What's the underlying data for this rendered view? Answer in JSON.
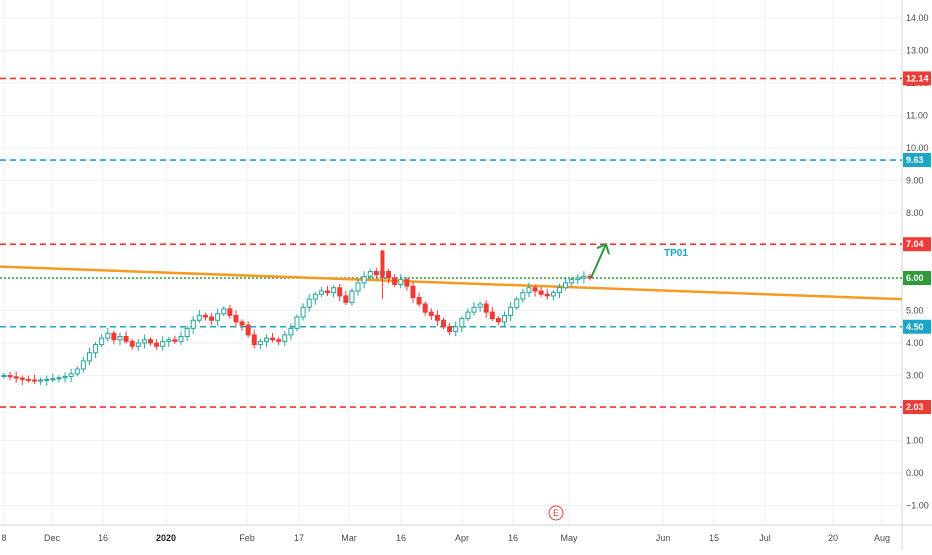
{
  "chart_data": {
    "type": "candlestick",
    "y_axis": {
      "ticks": [
        14,
        13,
        12,
        11,
        10,
        9,
        8,
        7,
        6,
        5,
        4,
        3,
        2,
        1,
        0,
        -1
      ],
      "tick_labels": [
        "14.00",
        "13.00",
        "12.00",
        "11.00",
        "10.00",
        "9.00",
        "8.00",
        "7.00",
        "6.00",
        "5.00",
        "4.00",
        "3.00",
        "2.00",
        "1.00",
        "0.00",
        "−1.00"
      ],
      "range": [
        -1.6,
        14.5
      ],
      "position": "right"
    },
    "x_axis": {
      "tick_labels": [
        "8",
        "Dec",
        "16",
        "2020",
        "Feb",
        "17",
        "Mar",
        "16",
        "Apr",
        "16",
        "May",
        "Jun",
        "15",
        "Jul",
        "20",
        "Aug"
      ],
      "bold_labels": [
        "2020"
      ]
    },
    "colors": {
      "up": "#26a69a",
      "down": "#ef3b36",
      "red_level": "#ef3b36",
      "cyan_level": "#1ba6c8",
      "green_level": "#2e9a3c",
      "trendline": "#f59a23",
      "arrow": "#2e9a3c",
      "grid": "#eef0f3"
    },
    "grid": true,
    "levels": [
      {
        "value": 12.14,
        "label": "12.14",
        "color": "#ef3b36",
        "style": "dashed"
      },
      {
        "value": 9.63,
        "label": "9.63",
        "color": "#1ba6c8",
        "style": "dashed"
      },
      {
        "value": 7.04,
        "label": "7.04",
        "color": "#ef3b36",
        "style": "dashed"
      },
      {
        "value": 6.0,
        "label": "6.00",
        "color": "#2e9a3c",
        "style": "dotted"
      },
      {
        "value": 4.5,
        "label": "4.50",
        "color": "#1ba6c8",
        "style": "dashed"
      },
      {
        "value": 2.03,
        "label": "2.03",
        "color": "#ef3b36",
        "style": "dashed"
      }
    ],
    "trendline": {
      "from_value": 6.35,
      "to_value": 5.35
    },
    "annotation": "TP01",
    "event_marker": "E",
    "closes": [
      3.0,
      2.96,
      2.92,
      2.88,
      2.86,
      2.85,
      2.86,
      2.88,
      2.9,
      2.93,
      2.97,
      3.05,
      3.2,
      3.45,
      3.7,
      3.95,
      4.15,
      4.3,
      4.1,
      4.2,
      4.05,
      3.9,
      4.0,
      4.1,
      4.0,
      3.9,
      4.05,
      4.1,
      4.05,
      4.2,
      4.45,
      4.7,
      4.85,
      4.8,
      4.7,
      4.9,
      5.05,
      4.85,
      4.65,
      4.55,
      4.25,
      3.95,
      4.05,
      4.15,
      4.1,
      4.05,
      4.25,
      4.45,
      4.8,
      5.1,
      5.35,
      5.5,
      5.6,
      5.55,
      5.7,
      5.45,
      5.25,
      5.6,
      5.85,
      6.05,
      6.2,
      6.1,
      6.2,
      6.0,
      5.8,
      5.95,
      5.75,
      5.4,
      5.2,
      4.95,
      4.85,
      4.7,
      4.5,
      4.35,
      4.5,
      4.75,
      4.95,
      5.1,
      5.2,
      4.95,
      4.75,
      4.65,
      4.85,
      5.1,
      5.35,
      5.55,
      5.7,
      5.6,
      5.5,
      5.45,
      5.55,
      5.7,
      5.85,
      5.95,
      6.0,
      6.05,
      6.0
    ]
  }
}
